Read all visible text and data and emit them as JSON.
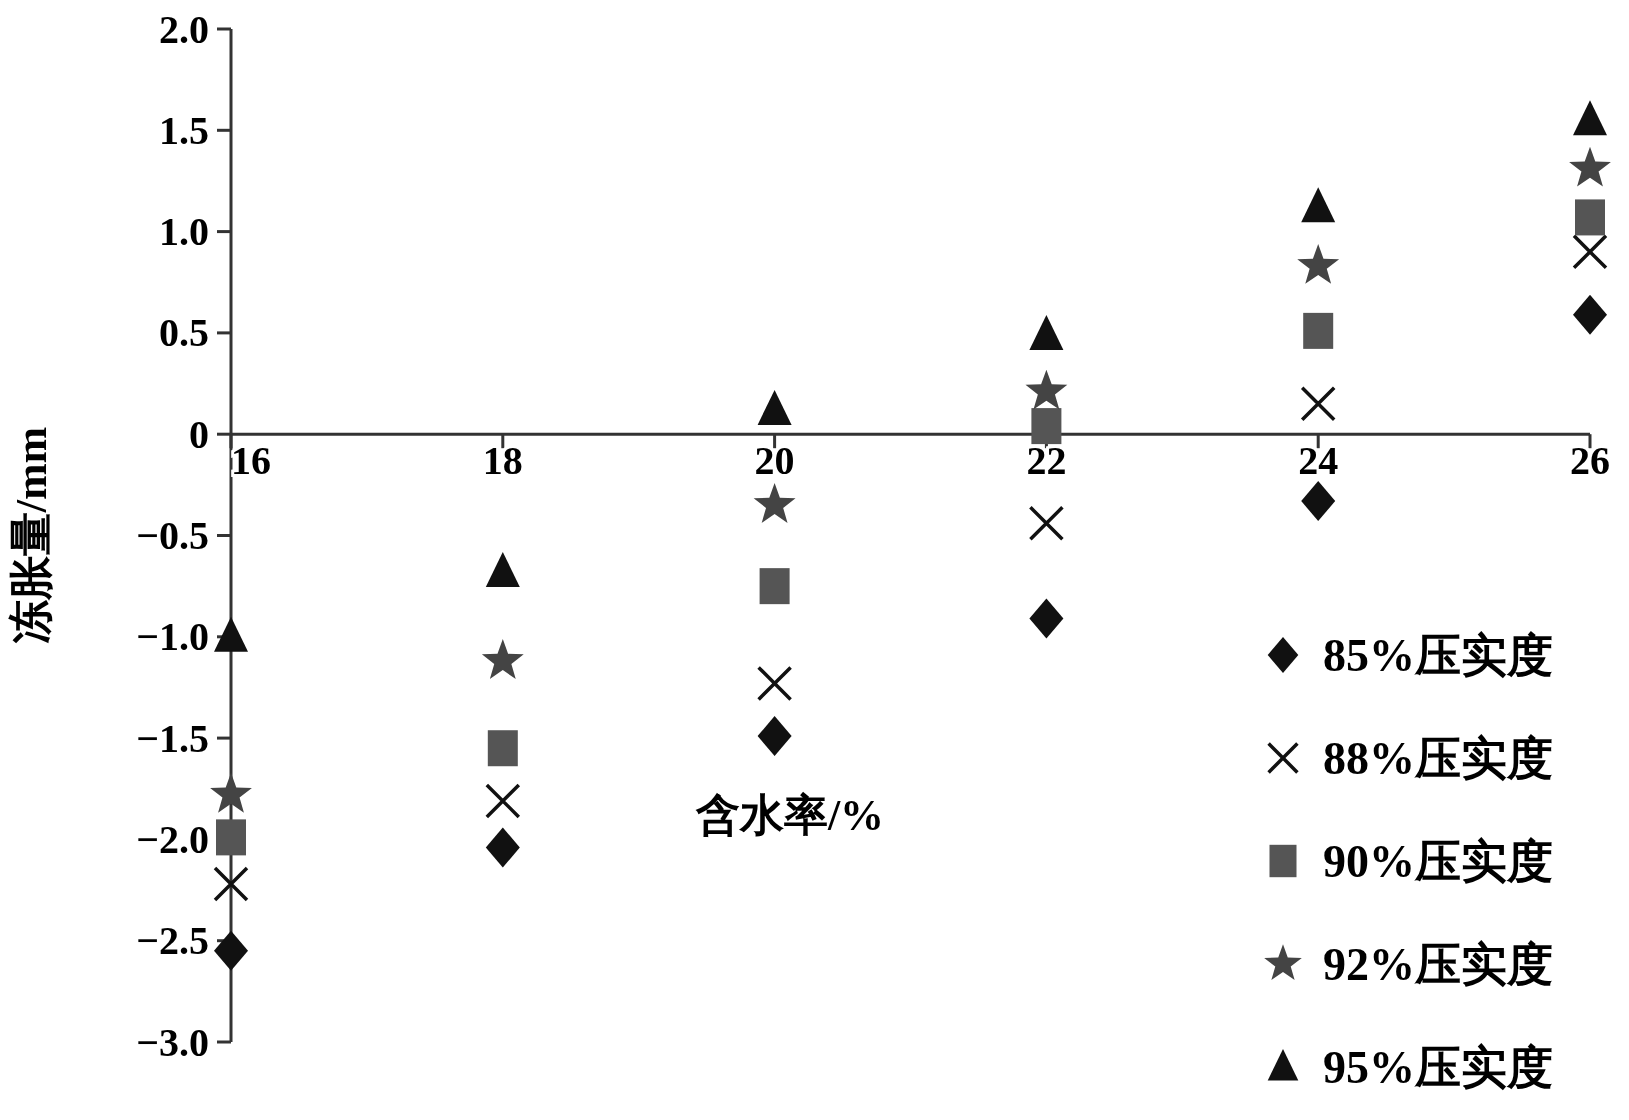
{
  "chart_data": {
    "type": "scatter",
    "xlabel": "含水率/%",
    "ylabel": "冻胀量/mm",
    "xlim": [
      16,
      26
    ],
    "xticks": [
      16,
      18,
      20,
      22,
      24,
      26
    ],
    "ylim": [
      -3,
      2
    ],
    "yticks": [
      {
        "value": 2,
        "label": "2.0"
      },
      {
        "value": 1.5,
        "label": "1.5"
      },
      {
        "value": 1,
        "label": "1.0"
      },
      {
        "value": 0.5,
        "label": "0.5"
      },
      0,
      {
        "value": -0.5,
        "label": "−0.5"
      },
      {
        "value": -1,
        "label": "−1.0"
      },
      {
        "value": -1.5,
        "label": "−1.5"
      },
      {
        "value": -2,
        "label": "−2.0"
      },
      {
        "value": -2.5,
        "label": "−2.5"
      },
      {
        "value": -3,
        "label": "−3.0"
      }
    ],
    "x": [
      16,
      18,
      20,
      22,
      24,
      26
    ],
    "legend": "bottom right",
    "grid": false,
    "series": [
      {
        "name": "85%压实度",
        "color": "#111111",
        "marker": "diamond",
        "values": [
          -2.55,
          -2.04,
          -1.49,
          -0.91,
          -0.33,
          0.59
        ]
      },
      {
        "name": "88%压实度",
        "color": "#111111",
        "marker": "cross",
        "values": [
          -2.22,
          -1.81,
          -1.23,
          -0.44,
          0.15,
          0.9
        ]
      },
      {
        "name": "90%压实度",
        "color": "#555555",
        "marker": "square",
        "values": [
          -1.99,
          -1.55,
          -0.75,
          0.04,
          0.51,
          1.07
        ]
      },
      {
        "name": "92%压实度",
        "color": "#444444",
        "marker": "star",
        "values": [
          -1.78,
          -1.12,
          -0.35,
          0.21,
          0.83,
          1.31
        ]
      },
      {
        "name": "95%压实度",
        "color": "#111111",
        "marker": "triangle",
        "values": [
          -1.0,
          -0.68,
          0.12,
          0.49,
          1.12,
          1.55
        ]
      }
    ]
  }
}
